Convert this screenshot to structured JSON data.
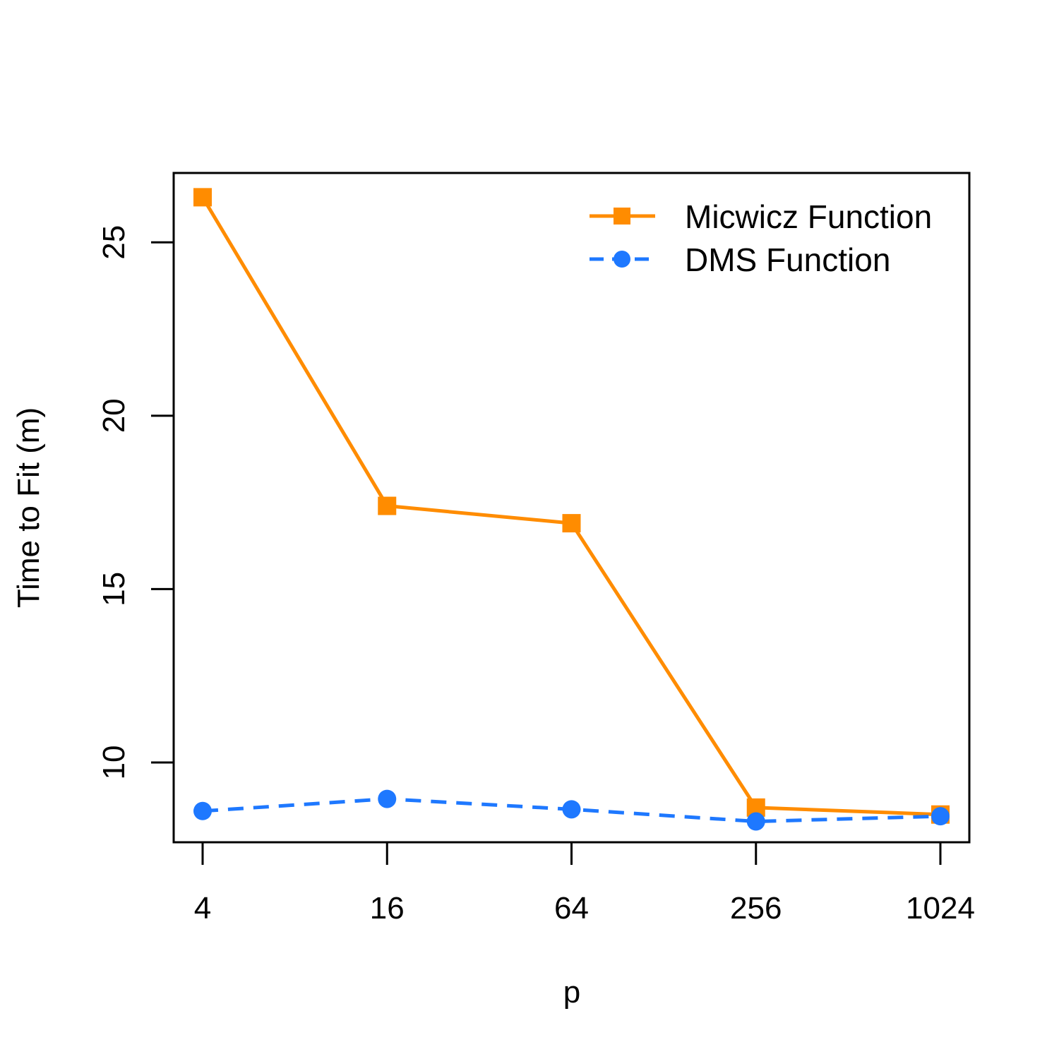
{
  "chart_data": {
    "type": "line",
    "title": "",
    "xlabel": "p",
    "ylabel": "Time to Fit (m)",
    "x_scale": "log2",
    "x": [
      4,
      16,
      64,
      256,
      1024
    ],
    "x_tick_labels": [
      "4",
      "16",
      "64",
      "256",
      "1024"
    ],
    "y_ticks": [
      10,
      15,
      20,
      25
    ],
    "y_tick_labels": [
      "10",
      "15",
      "20",
      "25"
    ],
    "ylim": [
      7.7,
      27.0
    ],
    "grid": false,
    "legend_position": "top-right",
    "series": [
      {
        "name": "Micwicz Function",
        "values": [
          26.3,
          17.4,
          16.9,
          8.7,
          8.5
        ],
        "color": "#ff8c00",
        "line_style": "solid",
        "marker": "square"
      },
      {
        "name": "DMS Function",
        "values": [
          8.6,
          8.95,
          8.65,
          8.3,
          8.45
        ],
        "color": "#1e78ff",
        "line_style": "dashed",
        "marker": "circle"
      }
    ]
  }
}
